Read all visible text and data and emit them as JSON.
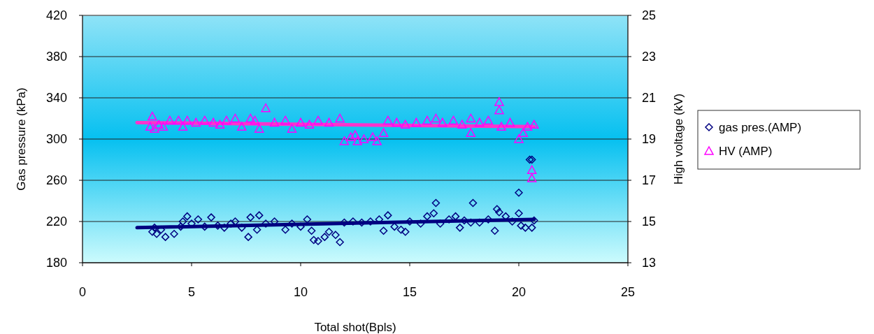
{
  "chart_data": {
    "type": "scatter",
    "xlabel": "Total shot(Bpls)",
    "ylabel": "Gas pressure (kPa)",
    "y2label": "High voltage (kV)",
    "xlim": [
      0,
      25
    ],
    "xticks": [
      0,
      5,
      10,
      15,
      20,
      25
    ],
    "ylim": [
      180,
      420
    ],
    "yticks": [
      180,
      220,
      260,
      300,
      340,
      380,
      420
    ],
    "y2lim": [
      13,
      25
    ],
    "y2ticks": [
      13,
      15,
      17,
      19,
      21,
      23,
      25
    ],
    "grid": "y",
    "legend": "right",
    "series": [
      {
        "name": "gas pres.(AMP)",
        "color": "#000080",
        "marker": "diamond",
        "x": [
          3.2,
          3.3,
          3.4,
          3.6,
          3.8,
          4.2,
          4.5,
          4.6,
          4.8,
          5.0,
          5.3,
          5.6,
          5.9,
          6.2,
          6.5,
          6.8,
          7.0,
          7.3,
          7.6,
          7.7,
          8.0,
          8.1,
          8.4,
          8.8,
          9.3,
          9.6,
          10.0,
          10.3,
          10.5,
          10.6,
          10.8,
          11.1,
          11.3,
          11.6,
          11.8,
          12.0,
          12.4,
          12.8,
          13.2,
          13.6,
          13.8,
          14.0,
          14.3,
          14.6,
          14.8,
          15.0,
          15.5,
          15.8,
          16.1,
          16.2,
          16.4,
          16.8,
          17.1,
          17.3,
          17.5,
          17.8,
          17.9,
          18.2,
          18.6,
          18.9,
          19.0,
          19.1,
          19.4,
          19.7,
          20.0,
          20.0,
          20.1,
          20.3,
          20.5,
          20.6,
          20.6,
          20.7
        ],
        "values": [
          210,
          214,
          208,
          212,
          205,
          208,
          215,
          220,
          225,
          218,
          222,
          215,
          224,
          216,
          214,
          218,
          220,
          214,
          205,
          224,
          212,
          226,
          218,
          220,
          212,
          218,
          215,
          222,
          211,
          202,
          201,
          205,
          210,
          207,
          200,
          219,
          220,
          219,
          220,
          222,
          211,
          226,
          215,
          212,
          210,
          220,
          218,
          225,
          228,
          238,
          218,
          222,
          225,
          214,
          221,
          219,
          238,
          219,
          222,
          211,
          232,
          229,
          225,
          220,
          248,
          228,
          216,
          214,
          280,
          280,
          214,
          221
        ]
      },
      {
        "name": "HV (AMP)",
        "color": "#ff00ff",
        "marker": "triangle",
        "axis": "y2",
        "x": [
          3.1,
          3.2,
          3.3,
          3.5,
          3.7,
          4.0,
          4.4,
          4.6,
          4.8,
          5.2,
          5.6,
          6.0,
          6.3,
          6.6,
          7.0,
          7.3,
          7.7,
          7.9,
          8.1,
          8.4,
          8.8,
          9.3,
          9.6,
          10.0,
          10.4,
          10.8,
          11.3,
          11.8,
          12.0,
          12.3,
          12.5,
          12.6,
          12.9,
          13.3,
          13.5,
          13.8,
          14.0,
          14.4,
          14.8,
          15.3,
          15.8,
          16.2,
          16.5,
          17.0,
          17.4,
          17.8,
          17.8,
          18.2,
          18.6,
          19.1,
          19.1,
          19.2,
          19.6,
          20.0,
          20.2,
          20.4,
          20.6,
          20.6,
          20.7
        ],
        "values": [
          19.6,
          20.1,
          19.5,
          19.7,
          19.6,
          19.9,
          19.9,
          19.6,
          19.9,
          19.8,
          19.9,
          19.8,
          19.7,
          19.9,
          20.0,
          19.6,
          20.0,
          19.9,
          19.5,
          20.5,
          19.8,
          19.9,
          19.5,
          19.8,
          19.7,
          19.9,
          19.8,
          20.0,
          18.9,
          19.1,
          19.2,
          18.9,
          19.0,
          19.1,
          18.9,
          19.3,
          19.9,
          19.8,
          19.7,
          19.8,
          19.9,
          20.0,
          19.8,
          19.9,
          19.7,
          20.0,
          19.3,
          19.8,
          19.9,
          20.8,
          20.4,
          19.6,
          19.8,
          19.0,
          19.3,
          19.6,
          17.5,
          17.1,
          19.7
        ]
      },
      {
        "type": "line",
        "color": "#000080",
        "marker": "none",
        "x": [
          2.5,
          20.7
        ],
        "values": [
          214,
          222
        ]
      },
      {
        "type": "line",
        "color": "#ff33cc",
        "marker": "none",
        "axis": "y2",
        "x": [
          2.5,
          20.7
        ],
        "values": [
          19.8,
          19.6
        ]
      }
    ]
  }
}
